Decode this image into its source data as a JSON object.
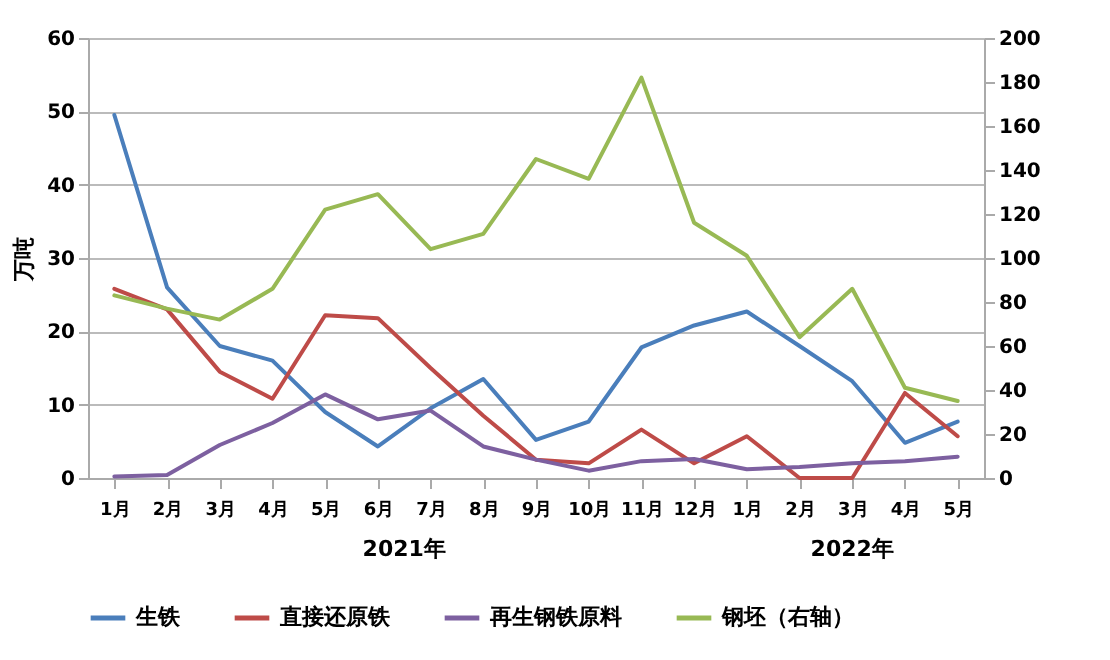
{
  "chart_data": {
    "type": "line",
    "ylabel": "万吨",
    "categories": [
      "1月",
      "2月",
      "3月",
      "4月",
      "5月",
      "6月",
      "7月",
      "8月",
      "9月",
      "10月",
      "11月",
      "12月",
      "1月",
      "2月",
      "3月",
      "4月",
      "5月"
    ],
    "annotations": [
      "2021年",
      "2022年"
    ],
    "ylim": [
      0,
      60
    ],
    "yticks": [
      0,
      10,
      20,
      30,
      40,
      50,
      60
    ],
    "y2lim": [
      0,
      200
    ],
    "y2ticks": [
      0,
      20,
      40,
      60,
      80,
      100,
      120,
      140,
      160,
      180,
      200
    ],
    "grid": "y",
    "legend": "bottom",
    "series": [
      {
        "name": "生铁",
        "color": "#4a7ebb",
        "values": [
          49.5,
          26,
          18,
          16,
          9,
          4.3,
          9.5,
          13.5,
          5.2,
          7.7,
          17.8,
          20.8,
          22.7,
          18,
          13.2,
          4.8,
          7.7
        ]
      },
      {
        "name": "直接还原铁",
        "color": "#be4b48",
        "values": [
          25.8,
          23,
          14.5,
          10.8,
          22.2,
          21.8,
          15,
          8.5,
          2.5,
          2,
          6.6,
          2,
          5.7,
          0,
          0,
          11.6,
          5.7
        ]
      },
      {
        "name": "再生钢铁原料",
        "color": "#7d60a0",
        "values": [
          0.2,
          0.4,
          4.5,
          7.5,
          11.4,
          8,
          9.2,
          4.3,
          2.5,
          1,
          2.3,
          2.6,
          1.2,
          1.5,
          2,
          2.3,
          2.9
        ]
      },
      {
        "name": "钢坯（右轴）",
        "color": "#98b954",
        "axis": "y2",
        "values": [
          83,
          77,
          72,
          86,
          122,
          129,
          104,
          111,
          145,
          136,
          182,
          116,
          101,
          64,
          86,
          41,
          35
        ]
      }
    ]
  }
}
